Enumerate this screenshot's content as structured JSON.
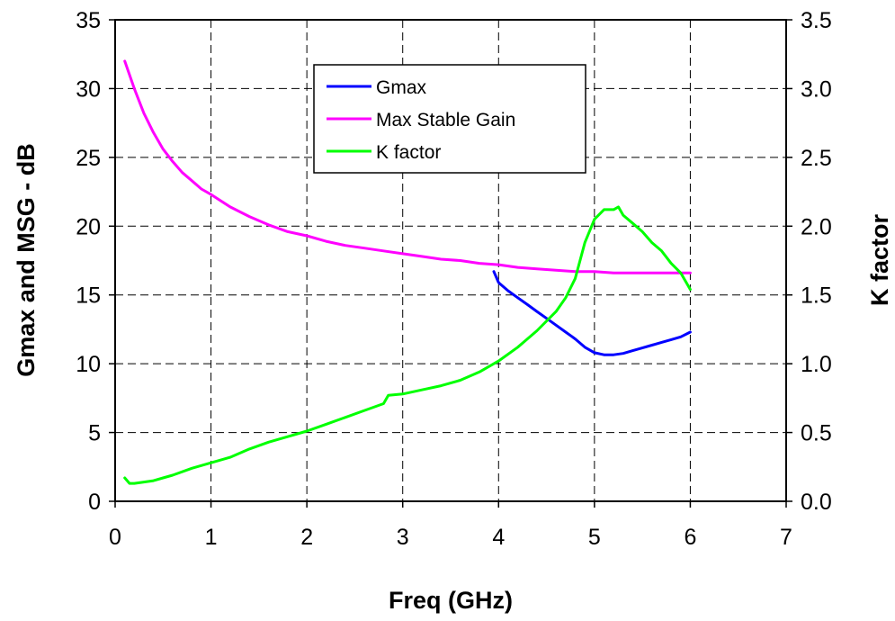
{
  "chart_data": {
    "type": "line",
    "xlabel": "Freq (GHz)",
    "ylabel": "Gmax and MSG - dB",
    "y2label": "K factor",
    "xlim": [
      0,
      7
    ],
    "ylim": [
      0,
      35
    ],
    "y2lim": [
      0,
      3.5
    ],
    "xticks": [
      "0",
      "1",
      "2",
      "3",
      "4",
      "5",
      "6",
      "7"
    ],
    "yticks": [
      "0",
      "5",
      "10",
      "15",
      "20",
      "25",
      "30",
      "35"
    ],
    "y2ticks": [
      "0.0",
      "0.5",
      "1.0",
      "1.5",
      "2.0",
      "2.5",
      "3.0",
      "3.5"
    ],
    "grid": true,
    "legend_position": "top-center",
    "series": [
      {
        "name": "Gmax",
        "axis": "left",
        "color": "#0000ff",
        "x": [
          3.95,
          4.0,
          4.1,
          4.2,
          4.3,
          4.4,
          4.5,
          4.6,
          4.7,
          4.8,
          4.9,
          5.0,
          5.1,
          5.2,
          5.3,
          5.4,
          5.5,
          5.6,
          5.7,
          5.8,
          5.9,
          6.0
        ],
        "y": [
          16.7,
          15.9,
          15.3,
          14.8,
          14.3,
          13.8,
          13.3,
          12.8,
          12.3,
          11.8,
          11.2,
          10.8,
          10.65,
          10.65,
          10.75,
          10.95,
          11.15,
          11.35,
          11.55,
          11.75,
          11.95,
          12.3
        ]
      },
      {
        "name": "Max Stable Gain",
        "axis": "left",
        "color": "#ff00ff",
        "x": [
          0.1,
          0.15,
          0.2,
          0.3,
          0.4,
          0.5,
          0.6,
          0.7,
          0.8,
          0.9,
          1.0,
          1.2,
          1.4,
          1.6,
          1.8,
          2.0,
          2.2,
          2.4,
          2.6,
          2.8,
          3.0,
          3.2,
          3.4,
          3.6,
          3.8,
          4.0,
          4.2,
          4.4,
          4.6,
          4.8,
          5.0,
          5.2,
          5.4,
          5.6,
          5.8,
          6.0
        ],
        "y": [
          32.0,
          31.0,
          30.0,
          28.2,
          26.8,
          25.6,
          24.7,
          23.9,
          23.3,
          22.7,
          22.3,
          21.4,
          20.7,
          20.1,
          19.6,
          19.3,
          18.9,
          18.6,
          18.4,
          18.2,
          18.0,
          17.8,
          17.6,
          17.5,
          17.3,
          17.2,
          17.0,
          16.9,
          16.8,
          16.7,
          16.7,
          16.6,
          16.6,
          16.6,
          16.6,
          16.6
        ]
      },
      {
        "name": "K factor",
        "axis": "right",
        "color": "#00ff00",
        "x": [
          0.1,
          0.15,
          0.2,
          0.3,
          0.4,
          0.5,
          0.6,
          0.8,
          1.0,
          1.2,
          1.4,
          1.6,
          1.8,
          2.0,
          2.2,
          2.4,
          2.6,
          2.8,
          2.85,
          3.0,
          3.2,
          3.4,
          3.6,
          3.8,
          4.0,
          4.2,
          4.4,
          4.6,
          4.7,
          4.8,
          4.9,
          5.0,
          5.1,
          5.2,
          5.25,
          5.3,
          5.4,
          5.5,
          5.6,
          5.7,
          5.8,
          5.9,
          6.0
        ],
        "y": [
          0.17,
          0.13,
          0.13,
          0.14,
          0.15,
          0.17,
          0.19,
          0.24,
          0.28,
          0.32,
          0.38,
          0.43,
          0.47,
          0.51,
          0.56,
          0.61,
          0.66,
          0.71,
          0.77,
          0.78,
          0.81,
          0.84,
          0.88,
          0.94,
          1.02,
          1.12,
          1.24,
          1.38,
          1.48,
          1.62,
          1.88,
          2.05,
          2.12,
          2.12,
          2.14,
          2.08,
          2.02,
          1.96,
          1.88,
          1.82,
          1.73,
          1.66,
          1.54
        ]
      }
    ]
  }
}
